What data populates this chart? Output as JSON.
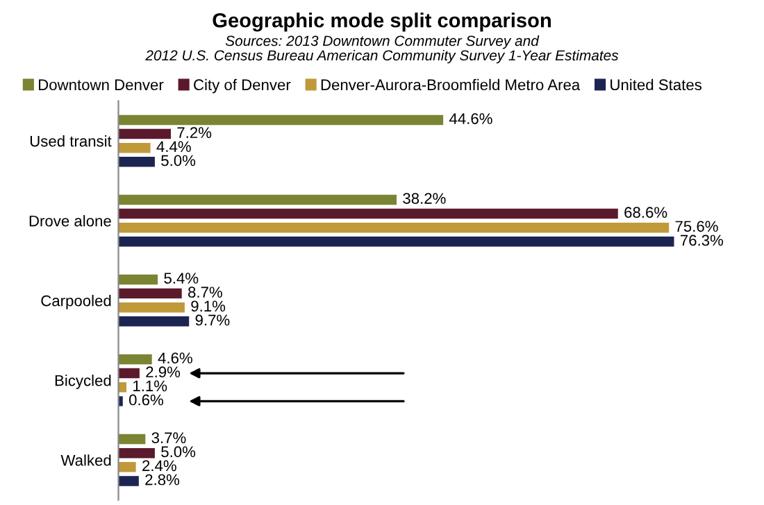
{
  "chart_data": {
    "type": "bar",
    "orientation": "horizontal",
    "title": "Geographic mode split comparison",
    "subtitle": "Sources: 2013 Downtown Commuter Survey and\n2012 U.S. Census Bureau American Community Survey 1-Year Estimates",
    "categories": [
      "Used transit",
      "Drove alone",
      "Carpooled",
      "Bicycled",
      "Walked"
    ],
    "series": [
      {
        "name": "Downtown Denver",
        "color": "#7b8433",
        "values": [
          44.6,
          38.2,
          5.4,
          4.6,
          3.7
        ],
        "value_labels": [
          "44.6%",
          "38.2%",
          "5.4%",
          "4.6%",
          "3.7%"
        ]
      },
      {
        "name": "City of Denver",
        "color": "#5a1a2c",
        "values": [
          7.2,
          68.6,
          8.7,
          2.9,
          5.0
        ],
        "value_labels": [
          "7.2%",
          "68.6%",
          "8.7%",
          "2.9%",
          "5.0%"
        ]
      },
      {
        "name": "Denver-Aurora-Broomfield Metro Area",
        "color": "#c09a3a",
        "values": [
          4.4,
          75.6,
          9.1,
          1.1,
          2.4
        ],
        "value_labels": [
          "4.4%",
          "75.6%",
          "9.1%",
          "1.1%",
          "2.4%"
        ]
      },
      {
        "name": "United States",
        "color": "#1c2552",
        "values": [
          5.0,
          76.3,
          9.7,
          0.6,
          2.8
        ],
        "value_labels": [
          "5.0%",
          "76.3%",
          "9.7%",
          "0.6%",
          "2.8%"
        ]
      }
    ],
    "legend": "top",
    "grid": false
  }
}
